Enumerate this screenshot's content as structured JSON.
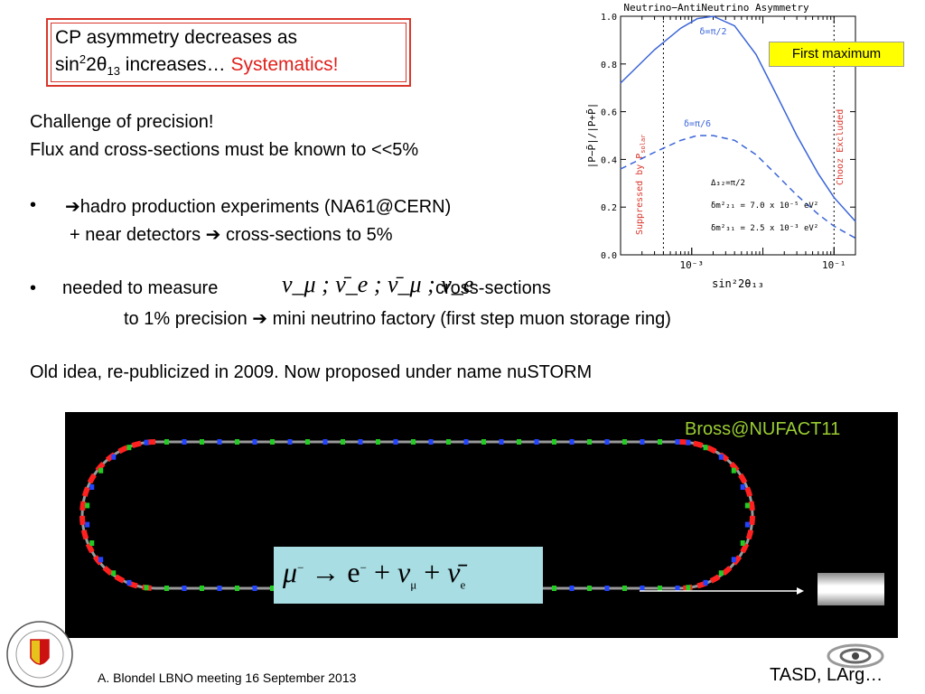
{
  "title": {
    "line1": "CP asymmetry decreases as",
    "line2_sin": "sin",
    "line2_sup": "2",
    "line2_two": "2",
    "line2_theta": "θ",
    "line2_sub": "13",
    "line2_rest": " increases… ",
    "line2_red": "Systematics!"
  },
  "body": {
    "line1": "Challenge of precision!",
    "line2": "Flux and cross-sections must be known to <<5%",
    "bullet1_a": "➔hadro production experiments (NA61@CERN)",
    "bullet1_b": "+ near detectors ➔ cross-sections to 5%",
    "bullet2_a": "needed to measure",
    "bullet2_formula": "ν_μ ; ν̄_e ; ν̄_μ ; ν_e",
    "bullet2_b": "cross-sections",
    "bullet2_c": "to 1% precision ➔ mini neutrino factory (first step muon storage ring)",
    "line_old": "Old idea, re-publicized in 2009. Now proposed under name nuSTORM",
    "bullet_char": "•"
  },
  "callout": "First maximum",
  "chart_data": {
    "type": "line",
    "title": "Neutrino−AntiNeutrino Asymmetry",
    "xlabel": "sin²2θ₁₃",
    "ylabel": "|P−P̄|/|P+P̄|",
    "xscale": "log",
    "xlim": [
      0.0001,
      0.2
    ],
    "ylim": [
      0,
      1.0
    ],
    "yticks": [
      0.0,
      0.2,
      0.4,
      0.6,
      0.8,
      1.0
    ],
    "xticks": [
      0.001,
      0.1
    ],
    "xtick_labels": [
      "10⁻³",
      "10⁻¹"
    ],
    "ytick_labels": [
      "0.0",
      "0.2",
      "0.4",
      "0.6",
      "0.8",
      "1.0"
    ],
    "series": [
      {
        "name": "δ=π/2",
        "style": "solid",
        "x": [
          0.0001,
          0.0003,
          0.0007,
          0.0012,
          0.002,
          0.004,
          0.008,
          0.015,
          0.03,
          0.06,
          0.1,
          0.2
        ],
        "values": [
          0.72,
          0.86,
          0.95,
          0.99,
          1.0,
          0.96,
          0.84,
          0.68,
          0.5,
          0.34,
          0.24,
          0.14
        ]
      },
      {
        "name": "δ=π/6",
        "style": "dashed",
        "x": [
          0.0001,
          0.0003,
          0.0007,
          0.0012,
          0.002,
          0.004,
          0.008,
          0.015,
          0.03,
          0.06,
          0.1,
          0.2
        ],
        "values": [
          0.36,
          0.43,
          0.48,
          0.5,
          0.5,
          0.48,
          0.42,
          0.34,
          0.25,
          0.17,
          0.12,
          0.07
        ]
      }
    ],
    "vlines": [
      0.0004,
      0.1
    ],
    "annotations": {
      "left_region": "Suppressed by P",
      "left_region_sub": "solar",
      "right_region": "Chooz Excluded",
      "params": [
        "Δ₃₂=π/2",
        "δm²₂₁ = 7.0 x 10⁻⁵ eV²",
        "δm²₃₁ = 2.5 x 10⁻³ eV²"
      ]
    },
    "line_color": "#3a64d8",
    "region_color": "#d9362b"
  },
  "ring": {
    "credit": "Bross@NUFACT11",
    "equation": "μ⁻ → e⁻ + ν_μ + ν̄_e",
    "eq_mu": "μ",
    "eq_minus": "−",
    "eq_arrow": " → e",
    "eq_minus2": "−",
    "eq_plus1": " + ",
    "eq_nu": "ν",
    "eq_mu_sub": "μ",
    "eq_plus2": " + ",
    "eq_nubar": "ν̄",
    "eq_e_sub": "e"
  },
  "footer": "A. Blondel   LBNO meeting 16 September 2013",
  "tasd": "TASD, LArg…"
}
